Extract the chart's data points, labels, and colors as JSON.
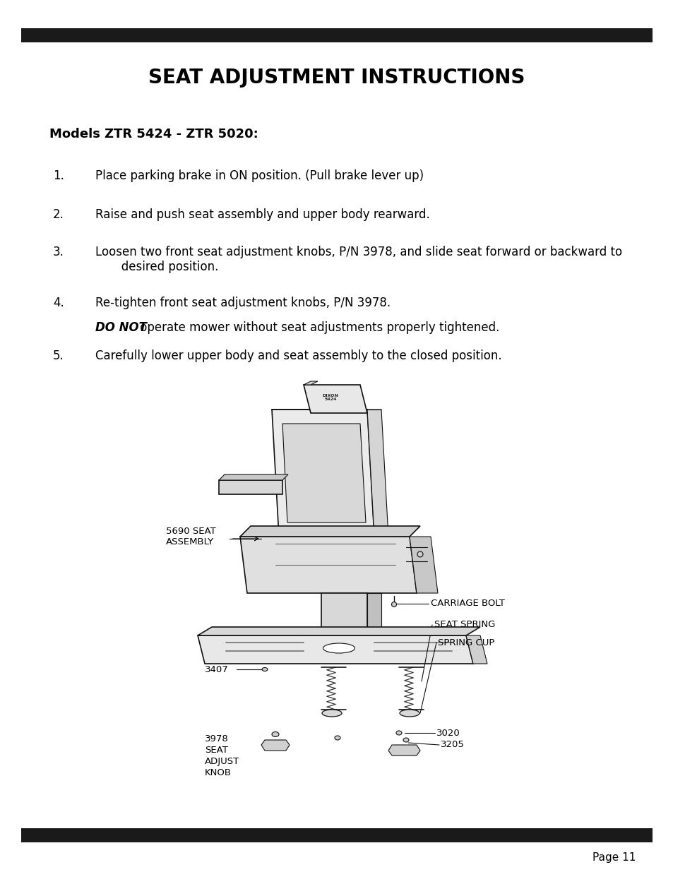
{
  "title": "SEAT ADJUSTMENT INSTRUCTIONS",
  "subtitle": "Models ZTR 5424 - ZTR 5020:",
  "steps": [
    {
      "num": "1.",
      "text": "Place parking brake in ON position. (Pull brake lever up)"
    },
    {
      "num": "2.",
      "text": "Raise and push seat assembly and upper body rearward."
    },
    {
      "num": "3.",
      "text": "Loosen two front seat adjustment knobs, P/N 3978, and slide seat forward or backward to\n       desired position."
    },
    {
      "num": "4.",
      "text": "Re-tighten front seat adjustment knobs, P/N 3978."
    },
    {
      "num": "5.",
      "text": "Carefully lower upper body and seat assembly to the closed position."
    }
  ],
  "warning_italic": "DO NOT",
  "warning_rest": " operate mower without seat adjustments properly tightened.",
  "page_label": "Page 11",
  "bg_color": "#ffffff",
  "text_color": "#000000",
  "bar_color": "#1a1a1a",
  "title_fontsize": 20,
  "subtitle_fontsize": 13,
  "body_fontsize": 12,
  "page_fontsize": 11
}
